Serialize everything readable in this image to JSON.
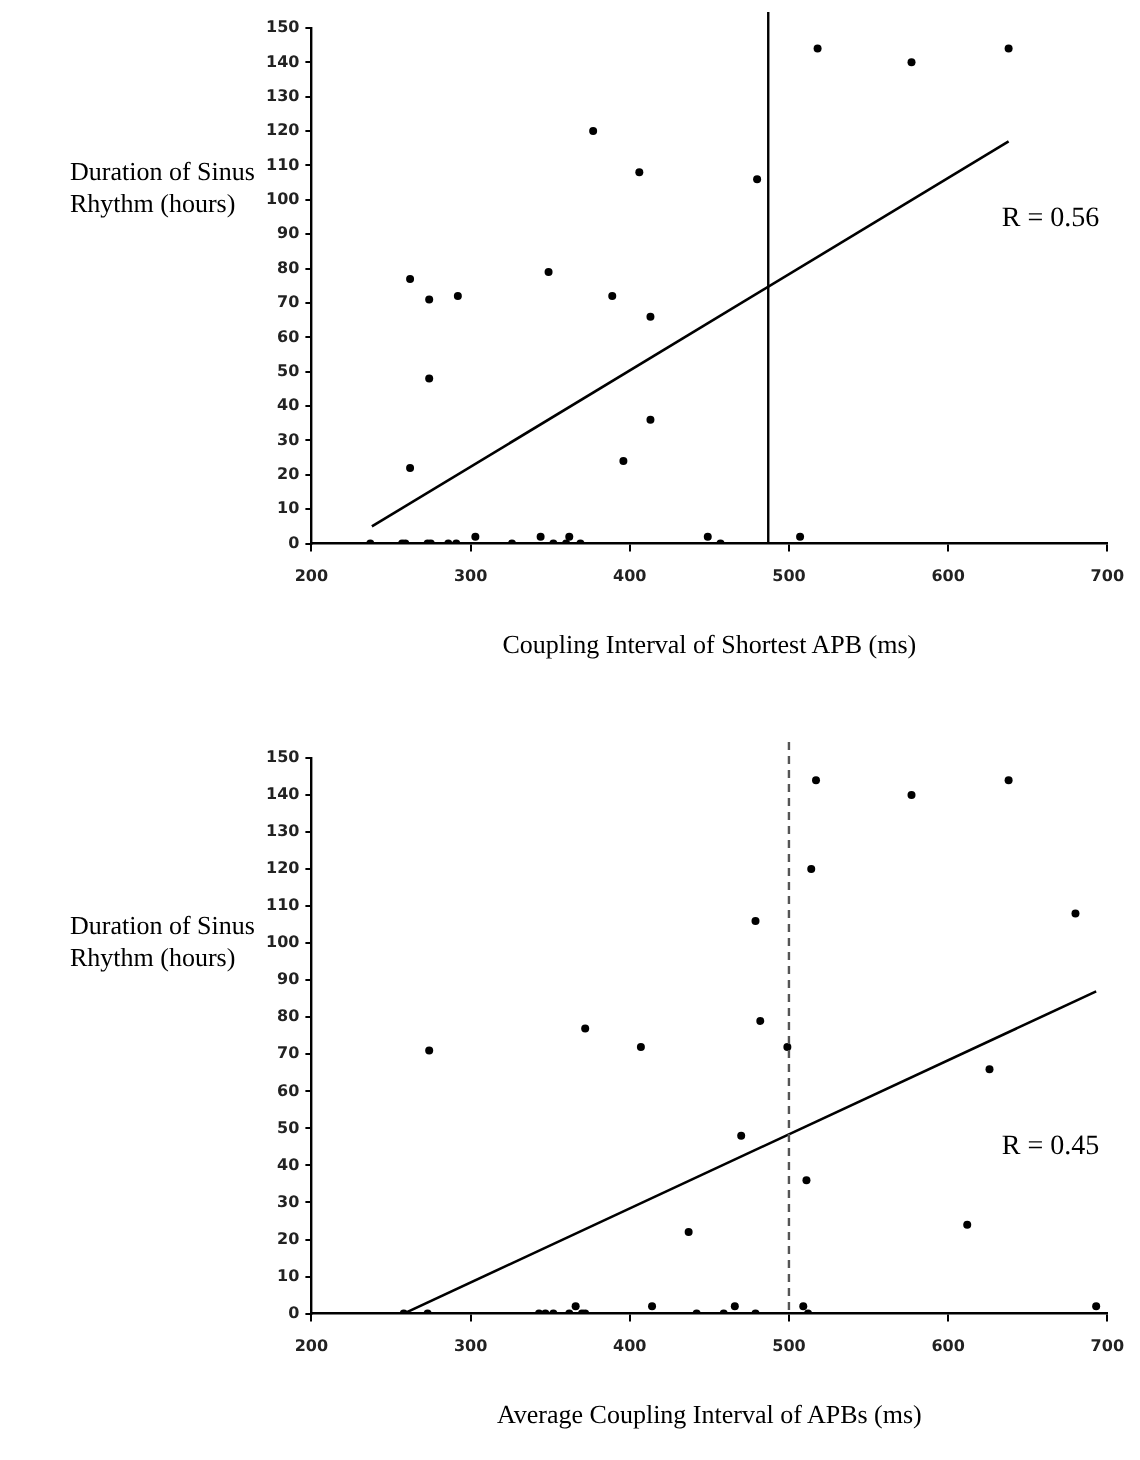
{
  "chart_data": [
    {
      "type": "scatter",
      "xlabel": "Coupling Interval of Shortest APB (ms)",
      "ylabel": "Duration of Sinus Rhythm (hours)",
      "xlim": [
        200,
        700
      ],
      "xticks": [
        200,
        300,
        400,
        500,
        600,
        700
      ],
      "ylim": [
        0,
        150
      ],
      "yticks": [
        0,
        10,
        20,
        30,
        40,
        50,
        60,
        70,
        80,
        90,
        100,
        110,
        120,
        130,
        140,
        150
      ],
      "grid": false,
      "legend": false,
      "series": [
        {
          "marker": "circle",
          "color": "#000000",
          "x": [
            518,
            577,
            638,
            377,
            406,
            480,
            262,
            274,
            292,
            349,
            389,
            413,
            274,
            413,
            396,
            262,
            237,
            257,
            259,
            273,
            275,
            286,
            291,
            303,
            326,
            344,
            352,
            360,
            362,
            369,
            449,
            457,
            507
          ],
          "values": [
            144,
            140,
            144,
            120,
            108,
            106,
            77,
            71,
            72,
            79,
            72,
            66,
            48,
            36,
            24,
            22,
            0,
            0,
            0,
            0,
            0,
            0,
            0,
            2,
            0,
            2,
            0,
            0,
            2,
            0,
            2,
            0,
            2
          ]
        },
        {
          "type": "line",
          "color": "#000000",
          "x": [
            238,
            638
          ],
          "values": [
            5,
            117
          ]
        }
      ],
      "ref_lines": [
        {
          "axis": "x",
          "value": 487,
          "color": "#000000",
          "line_style": "solid"
        }
      ],
      "annotations": [
        "R = 0.56"
      ]
    },
    {
      "type": "scatter",
      "xlabel": "Average Coupling Interval of APBs (ms)",
      "ylabel": "Duration of Sinus Rhythm (hours)",
      "xlim": [
        200,
        700
      ],
      "xticks": [
        200,
        300,
        400,
        500,
        600,
        700
      ],
      "ylim": [
        0,
        150
      ],
      "yticks": [
        0,
        10,
        20,
        30,
        40,
        50,
        60,
        70,
        80,
        90,
        100,
        110,
        120,
        130,
        140,
        150
      ],
      "grid": false,
      "legend": false,
      "series": [
        {
          "marker": "circle",
          "color": "#000000",
          "x": [
            517,
            577,
            638,
            514,
            479,
            680,
            274,
            372,
            407,
            482,
            499,
            626,
            470,
            511,
            437,
            612,
            258,
            273,
            343,
            347,
            352,
            362,
            366,
            370,
            372,
            414,
            442,
            459,
            466,
            479,
            509,
            512,
            693
          ],
          "values": [
            144,
            140,
            144,
            120,
            106,
            108,
            71,
            77,
            72,
            79,
            72,
            66,
            48,
            36,
            22,
            24,
            0,
            0,
            0,
            0,
            0,
            0,
            2,
            0,
            0,
            2,
            0,
            0,
            2,
            0,
            2,
            0,
            2
          ]
        },
        {
          "type": "line",
          "color": "#000000",
          "x": [
            258,
            693
          ],
          "values": [
            0,
            87
          ]
        }
      ],
      "ref_lines": [
        {
          "axis": "x",
          "value": 500,
          "color": "#555555",
          "line_style": "dashed"
        }
      ],
      "annotations": [
        "R = 0.45"
      ]
    }
  ]
}
